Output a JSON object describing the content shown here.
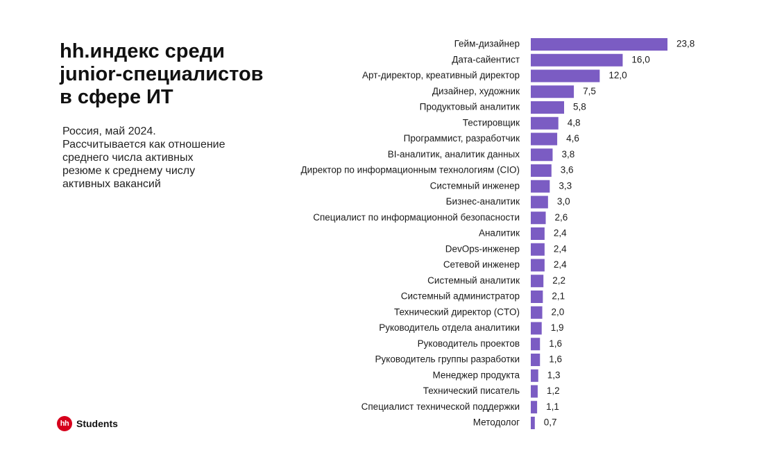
{
  "title_lines": [
    "hh.индекс среди",
    "junior-специалистов",
    "в сфере ИТ"
  ],
  "subtitle_lines": [
    "Россия, май 2024.",
    "Рассчитывается как отношение",
    "среднего числа активных",
    "резюме к среднему числу",
    "активных вакансий"
  ],
  "logo": {
    "badge": "hh",
    "text": "Students"
  },
  "chart_data": {
    "type": "bar",
    "orientation": "horizontal",
    "title": "hh.индекс среди junior-специалистов в сфере ИТ",
    "bar_color": "#7b5cc3",
    "xlim": [
      0,
      23.8
    ],
    "categories": [
      "Гейм-дизайнер",
      "Дата-сайентист",
      "Арт-директор, креативный директор",
      "Дизайнер, художник",
      "Продуктовый аналитик",
      "Тестировщик",
      "Программист, разработчик",
      "BI-аналитик, аналитик данных",
      "Директор по информационным технологиям (CIO)",
      "Системный инженер",
      "Бизнес-аналитик",
      "Специалист по информационной безопасности",
      "Аналитик",
      "DevOps-инженер",
      "Сетевой инженер",
      "Системный аналитик",
      "Системный администратор",
      "Технический директор (CTO)",
      "Руководитель отдела аналитики",
      "Руководитель проектов",
      "Руководитель группы разработки",
      "Менеджер продукта",
      "Технический писатель",
      "Специалист технической поддержки",
      "Методолог"
    ],
    "values": [
      23.8,
      16.0,
      12.0,
      7.5,
      5.8,
      4.8,
      4.6,
      3.8,
      3.6,
      3.3,
      3.0,
      2.6,
      2.4,
      2.4,
      2.4,
      2.2,
      2.1,
      2.0,
      1.9,
      1.6,
      1.6,
      1.3,
      1.2,
      1.1,
      0.7
    ],
    "value_labels": [
      "23,8",
      "16,0",
      "12,0",
      "7,5",
      "5,8",
      "4,8",
      "4,6",
      "3,8",
      "3,6",
      "3,3",
      "3,0",
      "2,6",
      "2,4",
      "2,4",
      "2,4",
      "2,2",
      "2,1",
      "2,0",
      "1,9",
      "1,6",
      "1,6",
      "1,3",
      "1,2",
      "1,1",
      "0,7"
    ]
  }
}
